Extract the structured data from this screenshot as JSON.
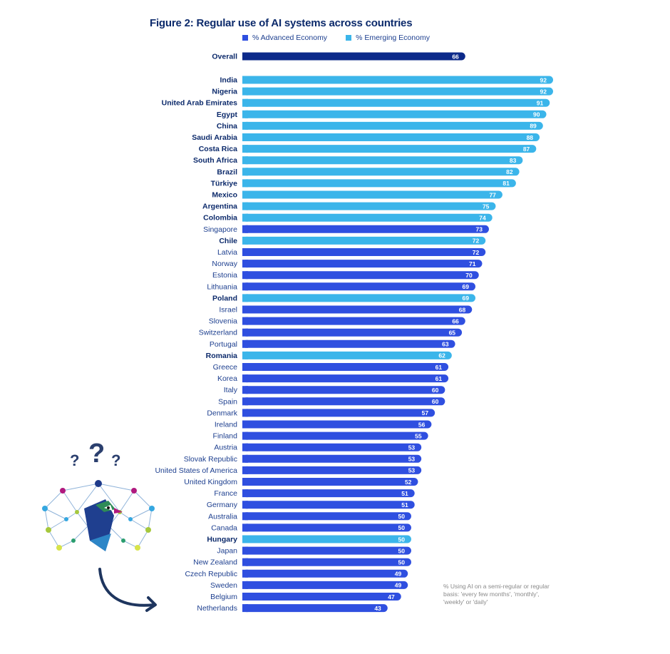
{
  "chart_data": {
    "type": "bar",
    "orientation": "horizontal",
    "title": "Figure 2: Regular use of AI systems across countries",
    "legend": [
      {
        "name": "% Advanced Economy",
        "color": "#2f4fe0"
      },
      {
        "name": "% Emerging Economy",
        "color": "#3bb5ea"
      }
    ],
    "overall": {
      "label": "Overall",
      "value": 66,
      "color": "#0c2a8a"
    },
    "xlim": [
      0,
      92
    ],
    "bars": [
      {
        "label": "India",
        "value": 92,
        "group": "emerging"
      },
      {
        "label": "Nigeria",
        "value": 92,
        "group": "emerging"
      },
      {
        "label": "United Arab Emirates",
        "value": 91,
        "group": "emerging"
      },
      {
        "label": "Egypt",
        "value": 90,
        "group": "emerging"
      },
      {
        "label": "China",
        "value": 89,
        "group": "emerging"
      },
      {
        "label": "Saudi Arabia",
        "value": 88,
        "group": "emerging"
      },
      {
        "label": "Costa Rica",
        "value": 87,
        "group": "emerging"
      },
      {
        "label": "South Africa",
        "value": 83,
        "group": "emerging"
      },
      {
        "label": "Brazil",
        "value": 82,
        "group": "emerging"
      },
      {
        "label": "Türkiye",
        "value": 81,
        "group": "emerging"
      },
      {
        "label": "Mexico",
        "value": 77,
        "group": "emerging"
      },
      {
        "label": "Argentina",
        "value": 75,
        "group": "emerging"
      },
      {
        "label": "Colombia",
        "value": 74,
        "group": "emerging"
      },
      {
        "label": "Singapore",
        "value": 73,
        "group": "advanced"
      },
      {
        "label": "Chile",
        "value": 72,
        "group": "emerging"
      },
      {
        "label": "Latvia",
        "value": 72,
        "group": "advanced"
      },
      {
        "label": "Norway",
        "value": 71,
        "group": "advanced"
      },
      {
        "label": "Estonia",
        "value": 70,
        "group": "advanced"
      },
      {
        "label": "Lithuania",
        "value": 69,
        "group": "advanced"
      },
      {
        "label": "Poland",
        "value": 69,
        "group": "emerging"
      },
      {
        "label": "Israel",
        "value": 68,
        "group": "advanced"
      },
      {
        "label": "Slovenia",
        "value": 66,
        "group": "advanced"
      },
      {
        "label": "Switzerland",
        "value": 65,
        "group": "advanced"
      },
      {
        "label": "Portugal",
        "value": 63,
        "group": "advanced"
      },
      {
        "label": "Romania",
        "value": 62,
        "group": "emerging"
      },
      {
        "label": "Greece",
        "value": 61,
        "group": "advanced"
      },
      {
        "label": "Korea",
        "value": 61,
        "group": "advanced"
      },
      {
        "label": "Italy",
        "value": 60,
        "group": "advanced"
      },
      {
        "label": "Spain",
        "value": 60,
        "group": "advanced"
      },
      {
        "label": "Denmark",
        "value": 57,
        "group": "advanced"
      },
      {
        "label": "Ireland",
        "value": 56,
        "group": "advanced"
      },
      {
        "label": "Finland",
        "value": 55,
        "group": "advanced"
      },
      {
        "label": "Austria",
        "value": 53,
        "group": "advanced"
      },
      {
        "label": "Slovak Republic",
        "value": 53,
        "group": "advanced"
      },
      {
        "label": "United States of America",
        "value": 53,
        "group": "advanced"
      },
      {
        "label": "United Kingdom",
        "value": 52,
        "group": "advanced"
      },
      {
        "label": "France",
        "value": 51,
        "group": "advanced"
      },
      {
        "label": "Germany",
        "value": 51,
        "group": "advanced"
      },
      {
        "label": "Australia",
        "value": 50,
        "group": "advanced"
      },
      {
        "label": "Canada",
        "value": 50,
        "group": "advanced"
      },
      {
        "label": "Hungary",
        "value": 50,
        "group": "emerging"
      },
      {
        "label": "Japan",
        "value": 50,
        "group": "advanced"
      },
      {
        "label": "New Zealand",
        "value": 50,
        "group": "advanced"
      },
      {
        "label": "Czech Republic",
        "value": 49,
        "group": "advanced"
      },
      {
        "label": "Sweden",
        "value": 49,
        "group": "advanced"
      },
      {
        "label": "Belgium",
        "value": 47,
        "group": "advanced"
      },
      {
        "label": "Netherlands",
        "value": 43,
        "group": "advanced"
      }
    ],
    "note": "% Using AI on a semi-regular or regular basis: 'every few months', 'monthly', 'weekly' or 'daily'"
  },
  "mascot": {
    "name": "peacock-mascot-icon",
    "questions": [
      "?",
      "?",
      "?"
    ]
  }
}
